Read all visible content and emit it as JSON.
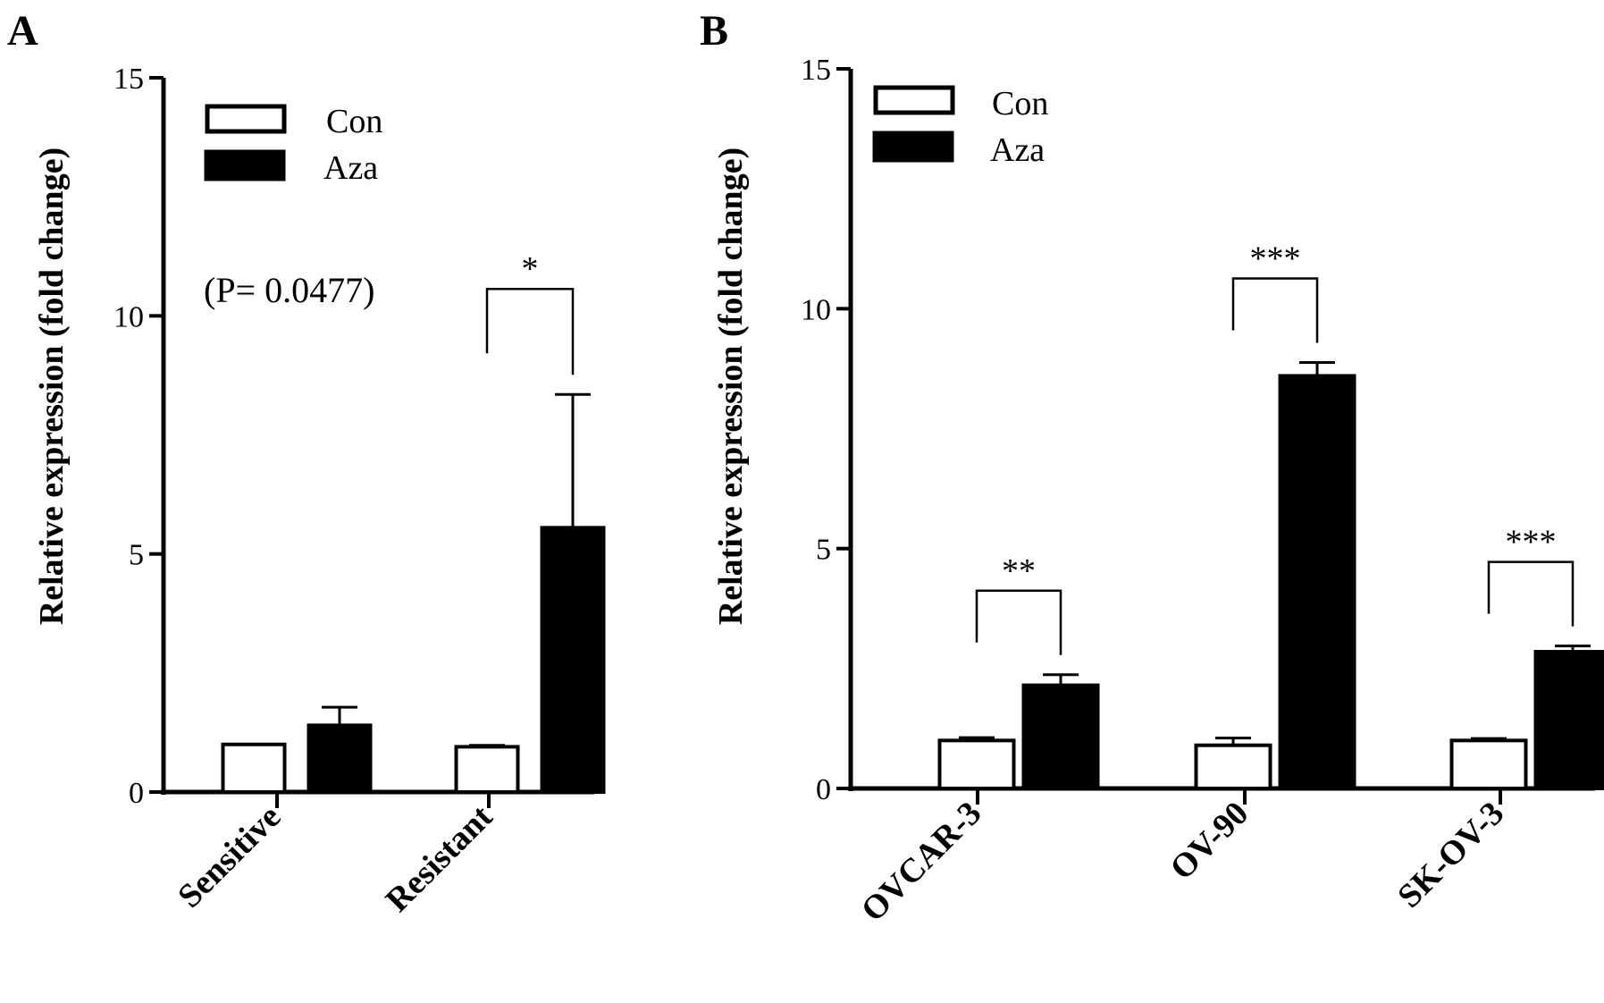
{
  "chart_data": [
    {
      "type": "bar",
      "panel": "A",
      "ylabel": "Relative expression (fold change)",
      "ylim": [
        0,
        15
      ],
      "yticks": [
        0,
        5,
        10,
        15
      ],
      "categories": [
        "Sensitive",
        "Resistant"
      ],
      "series": [
        {
          "name": "Con",
          "values": [
            1.0,
            0.95
          ],
          "errors": [
            0.0,
            0.03
          ],
          "color": "#ffffff"
        },
        {
          "name": "Aza",
          "values": [
            1.4,
            5.55
          ],
          "errors": [
            0.38,
            2.8
          ],
          "color": "#000000"
        }
      ],
      "legend": "top-left",
      "annotations": {
        "note": "(P= 0.0477)",
        "significance": [
          {
            "category": "Resistant",
            "label": "*"
          }
        ]
      }
    },
    {
      "type": "bar",
      "panel": "B",
      "ylabel": "Relative expression (fold change)",
      "ylim": [
        0,
        15
      ],
      "yticks": [
        0,
        5,
        10,
        15
      ],
      "categories": [
        "OVCAR-3",
        "OV-90",
        "SK-OV-3"
      ],
      "series": [
        {
          "name": "Con",
          "values": [
            1.0,
            0.9,
            1.0
          ],
          "errors": [
            0.06,
            0.15,
            0.04
          ],
          "color": "#ffffff"
        },
        {
          "name": "Aza",
          "values": [
            2.15,
            8.6,
            2.85
          ],
          "errors": [
            0.22,
            0.28,
            0.12
          ],
          "color": "#000000"
        }
      ],
      "legend": "top-left",
      "annotations": {
        "significance": [
          {
            "category": "OVCAR-3",
            "label": "**"
          },
          {
            "category": "OV-90",
            "label": "***"
          },
          {
            "category": "SK-OV-3",
            "label": "***"
          }
        ]
      }
    }
  ]
}
